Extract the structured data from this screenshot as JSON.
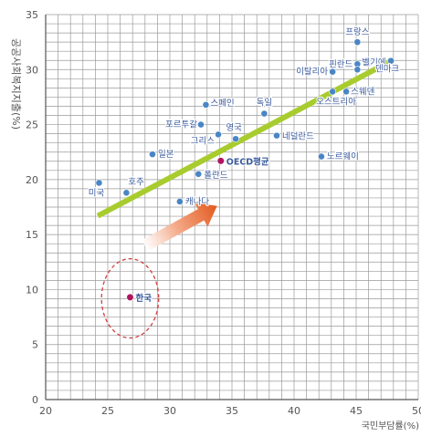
{
  "chart_data": {
    "type": "scatter",
    "title": "",
    "xlabel": "국민부담률(%)",
    "ylabel": "공공사회복지지출(%)",
    "xlim": [
      20,
      50
    ],
    "ylim": [
      0,
      35
    ],
    "x_ticks": [
      20,
      25,
      30,
      35,
      40,
      45,
      50
    ],
    "y_ticks": [
      0,
      5,
      10,
      15,
      20,
      25,
      30,
      35
    ],
    "grid": true,
    "points": [
      {
        "label": "미국",
        "x": 24.3,
        "y": 19.7,
        "color": "#4a86c5"
      },
      {
        "label": "호주",
        "x": 26.5,
        "y": 18.8,
        "color": "#4a86c5"
      },
      {
        "label": "일본",
        "x": 28.6,
        "y": 22.3,
        "color": "#4a86c5"
      },
      {
        "label": "캐나다",
        "x": 30.8,
        "y": 18.0,
        "color": "#4a86c5"
      },
      {
        "label": "폴란드",
        "x": 32.3,
        "y": 20.5,
        "color": "#4a86c5"
      },
      {
        "label": "OECD평균",
        "x": 34.1,
        "y": 21.7,
        "color": "#b0155f"
      },
      {
        "label": "포르투갈",
        "x": 32.5,
        "y": 25.0,
        "color": "#4a86c5"
      },
      {
        "label": "스페인",
        "x": 32.9,
        "y": 26.8,
        "color": "#4a86c5"
      },
      {
        "label": "그리스",
        "x": 33.9,
        "y": 24.1,
        "color": "#4a86c5"
      },
      {
        "label": "영국",
        "x": 35.3,
        "y": 23.7,
        "color": "#4a86c5"
      },
      {
        "label": "독일",
        "x": 37.6,
        "y": 26.0,
        "color": "#4a86c5"
      },
      {
        "label": "네덜란드",
        "x": 38.6,
        "y": 24.0,
        "color": "#4a86c5"
      },
      {
        "label": "노르웨이",
        "x": 42.2,
        "y": 22.1,
        "color": "#4a86c5"
      },
      {
        "label": "이탈리아",
        "x": 43.1,
        "y": 29.8,
        "color": "#4a86c5"
      },
      {
        "label": "오스트리아",
        "x": 43.1,
        "y": 28.0,
        "color": "#4a86c5"
      },
      {
        "label": "스웨덴",
        "x": 44.2,
        "y": 28.0,
        "color": "#4a86c5"
      },
      {
        "label": "핀란드",
        "x": 45.1,
        "y": 30.5,
        "color": "#4a86c5"
      },
      {
        "label": "프랑스",
        "x": 45.1,
        "y": 32.5,
        "color": "#4a86c5"
      },
      {
        "label": "벨기에",
        "x": 45.1,
        "y": 30.0,
        "color": "#4a86c5"
      },
      {
        "label": "덴마크",
        "x": 47.8,
        "y": 30.8,
        "color": "#4a86c5"
      },
      {
        "label": "한국",
        "x": 26.8,
        "y": 9.3,
        "color": "#b0155f"
      }
    ],
    "trend_line": {
      "x": [
        24.2,
        48.0
      ],
      "y": [
        16.7,
        30.9
      ],
      "color": "#a8cc2e"
    },
    "highlight_circle": {
      "center": [
        26.8,
        9.2
      ],
      "rx": 2.3,
      "ry": 3.6,
      "color": "#d04040"
    },
    "arrow": {
      "from": [
        28.0,
        14.0
      ],
      "to": [
        33.8,
        17.6
      ],
      "color": "#e66a2c"
    }
  }
}
